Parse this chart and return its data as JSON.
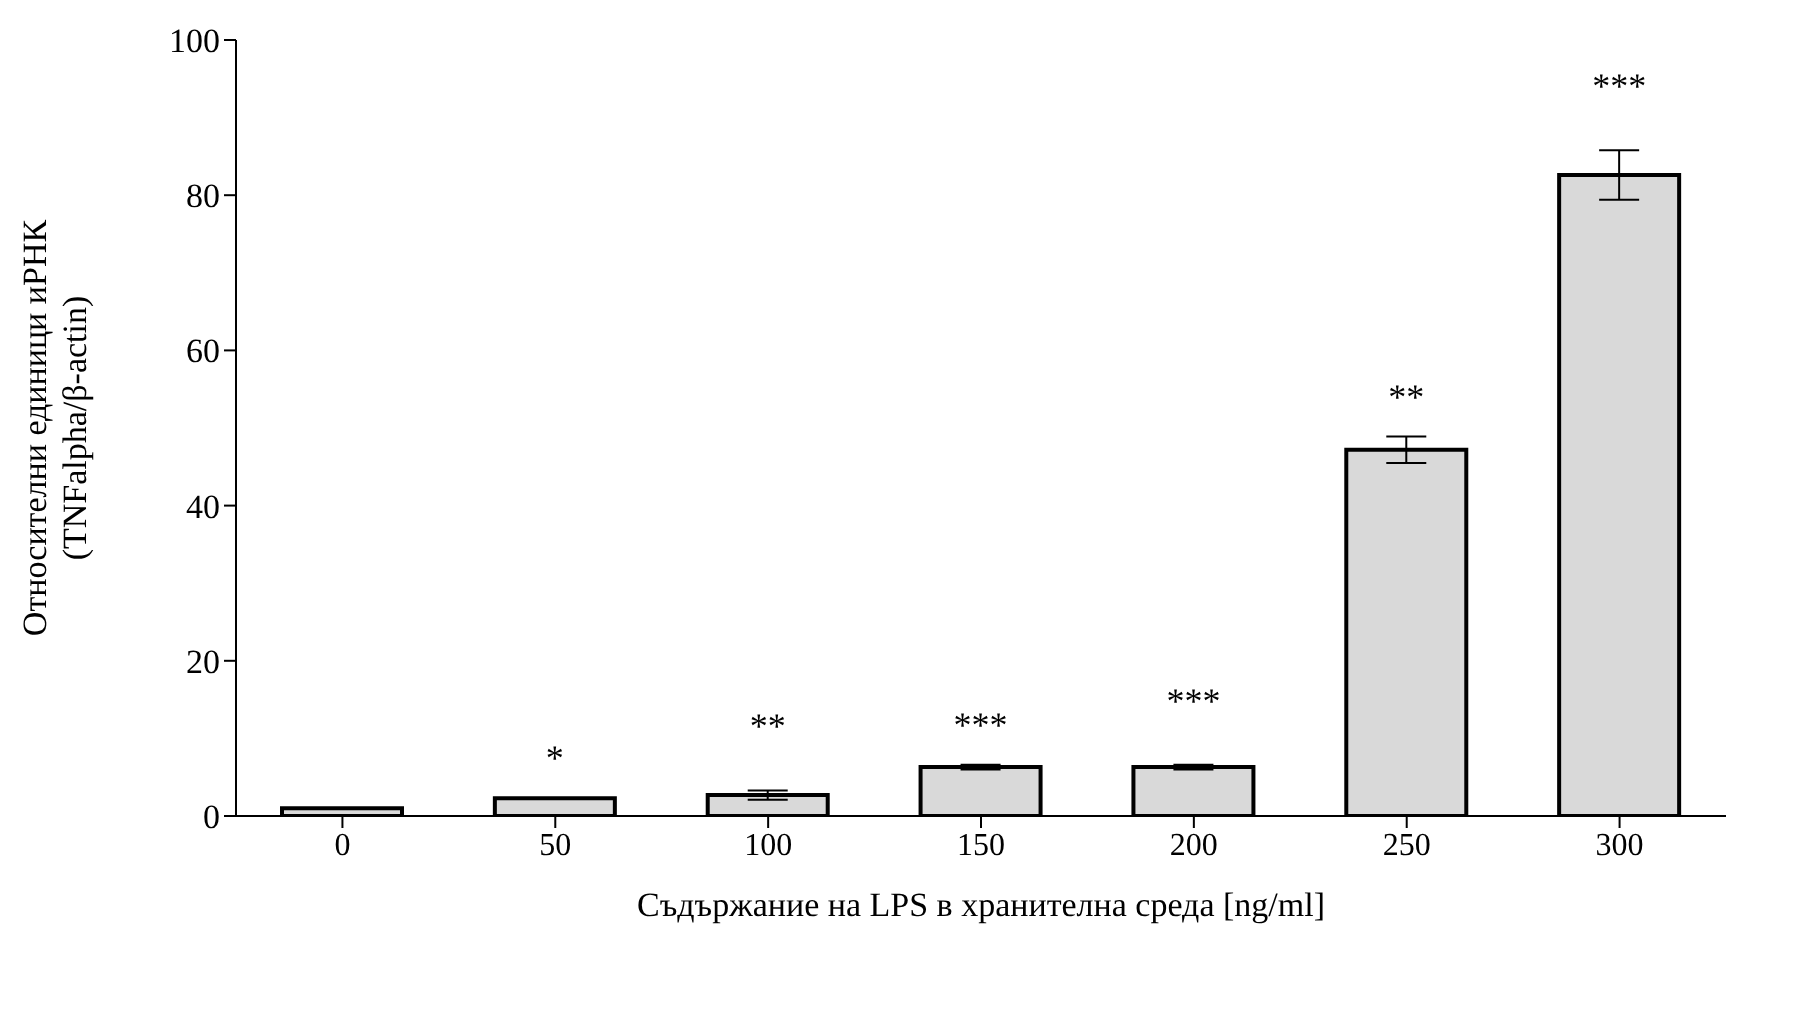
{
  "chart_data": {
    "type": "bar",
    "xlabel": "Съдържание на LPS в хранителна среда [ng/ml]",
    "ylabel": "Относителни единици иРНК\n(TNFalpha/β-actin)",
    "categories": [
      "0",
      "50",
      "100",
      "150",
      "200",
      "250",
      "300"
    ],
    "values": [
      1.0,
      2.3,
      2.7,
      6.3,
      6.3,
      47.2,
      82.6
    ],
    "errors": [
      null,
      null,
      0.6,
      0.3,
      0.3,
      1.7,
      3.2
    ],
    "color": "#d9d9d9",
    "ylim": [
      0,
      100
    ],
    "yticks": [
      0,
      20,
      40,
      60,
      80,
      100
    ],
    "grid": false,
    "legend": false,
    "annotations": [
      "*",
      "**",
      "***",
      "***",
      "**",
      "***"
    ]
  }
}
